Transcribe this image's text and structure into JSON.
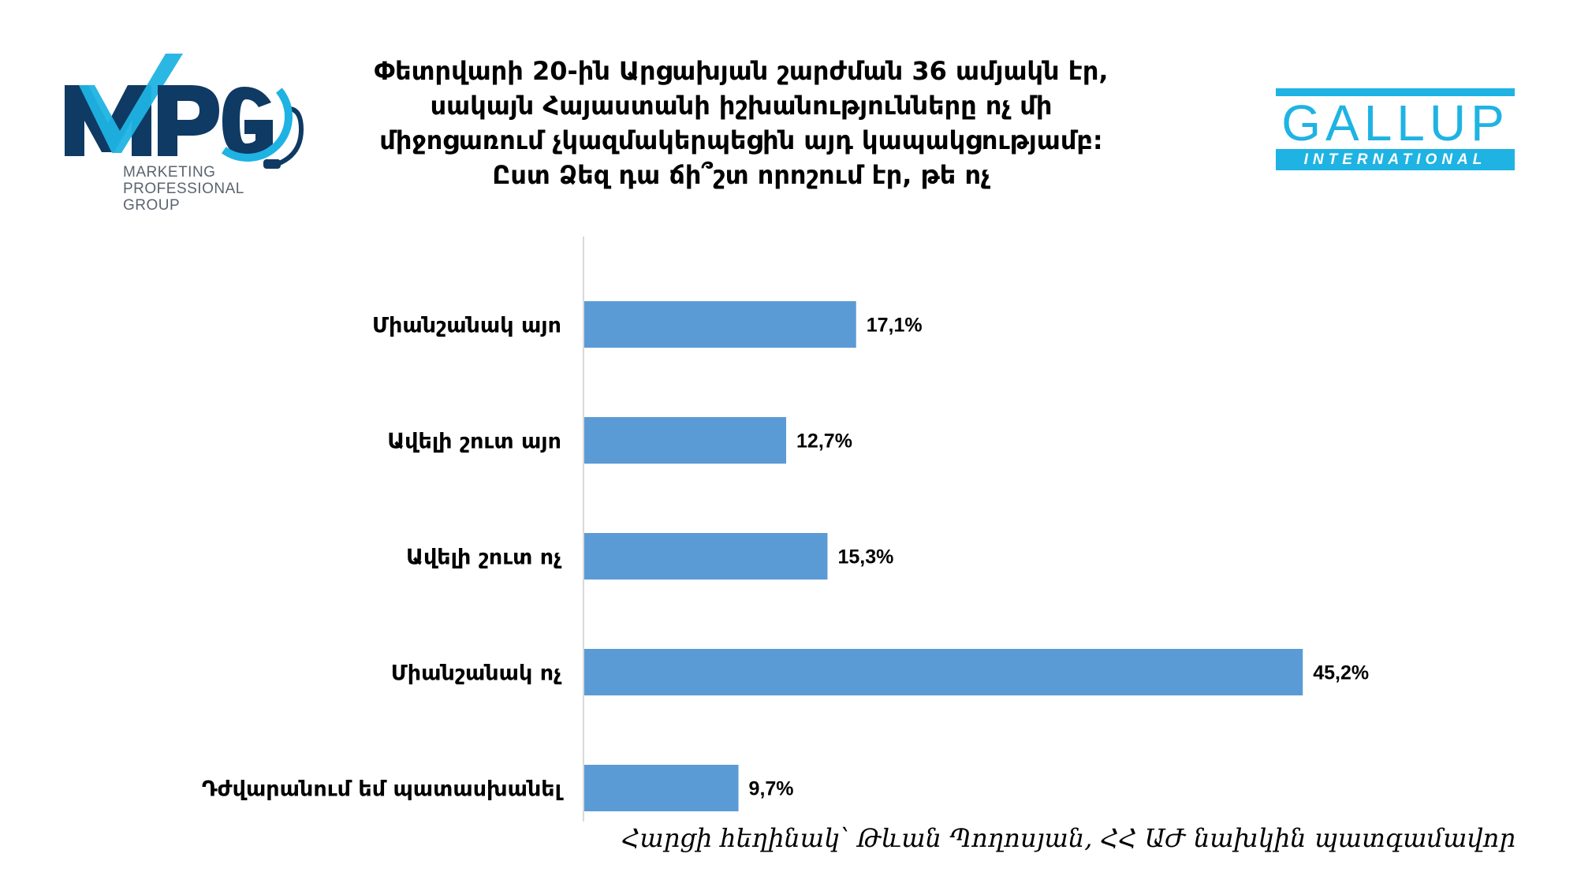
{
  "logo_left": {
    "name": "MPG",
    "lines": [
      "MARKETING",
      "PROFESSIONAL",
      "GROUP"
    ],
    "icon": "headset-icon",
    "colors": {
      "dark": "#0f3a63",
      "accent": "#1fb3e3"
    }
  },
  "title_lines": [
    "Փետրվարի 20-ին Արցախյան շարժման 36 ամյակն էր,",
    "սակայն Հայաստանի իշխանությունները ոչ մի",
    "միջոցառում չկազմակերպեցին այդ կապակցությամբ:",
    "Ըստ Ձեզ դա ճի՞շտ որոշում էր, թե ոչ"
  ],
  "logo_right": {
    "name": "GALLUP",
    "sub": "INTERNATIONAL",
    "color": "#1fb3e3"
  },
  "chart_data": {
    "type": "bar",
    "orientation": "horizontal",
    "categories": [
      "Միանշանակ այո",
      "Ավելի շուտ այո",
      "Ավելի շուտ ոչ",
      "Միանշանակ ոչ",
      "Դժվարանում եմ պատասխանել"
    ],
    "values": [
      17.1,
      12.7,
      15.3,
      45.2,
      9.7
    ],
    "value_labels": [
      "17,1%",
      "12,7%",
      "15,3%",
      "45,2%",
      "9,7%"
    ],
    "xlim": [
      0,
      50
    ],
    "bar_color": "#5b9bd5",
    "axis_color": "#d9d9d9",
    "grid": false,
    "legend": "none"
  },
  "footnote": "Հարցի հեղինակ՝ Թևան Պողոսյան, ՀՀ ԱԺ նախկին պատգամավոր"
}
